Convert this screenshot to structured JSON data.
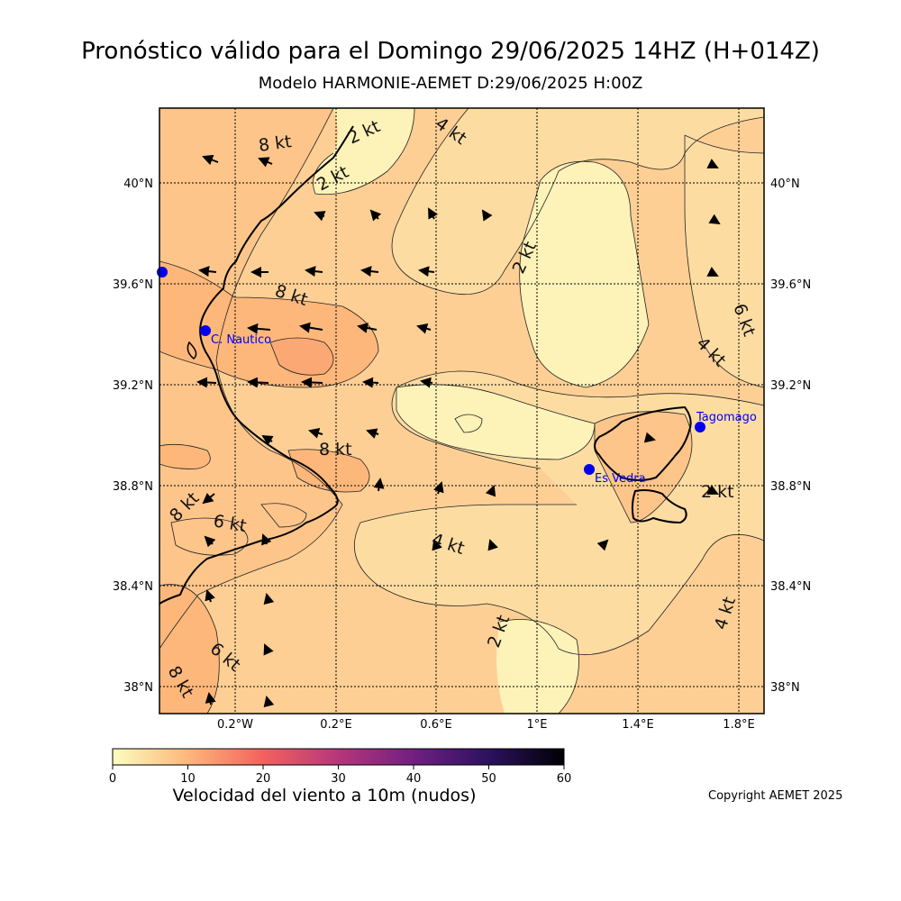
{
  "header": {
    "title": "Pronóstico válido para el Domingo 29/06/2025 14HZ (H+014Z)",
    "subtitle": "Modelo HARMONIE-AEMET D:29/06/2025 H:00Z"
  },
  "axes": {
    "lon_ticks": [
      "0.2°W",
      "0.2°E",
      "0.6°E",
      "1°E",
      "1.4°E",
      "1.8°E"
    ],
    "lat_ticks": [
      "40°N",
      "39.6°N",
      "39.2°N",
      "38.8°N",
      "38.4°N",
      "38°N"
    ],
    "lon_range": [
      -0.52,
      1.88
    ],
    "lat_range": [
      37.9,
      40.3
    ]
  },
  "contour_labels": [
    "8 kt",
    "2 kt",
    "4 kt",
    "2 kt",
    "2 kt",
    "8 kt",
    "6 kt",
    "4 kt",
    "8 kt",
    "8 kt",
    "6 kt",
    "4 kt",
    "2 kt",
    "2 kt",
    "4 kt",
    "6 kt",
    "8 kt"
  ],
  "stations": [
    {
      "name": "C. Nautico",
      "lon": -0.33,
      "lat": 39.42
    },
    {
      "name": "Tagomago",
      "lon": 1.63,
      "lat": 39.03
    },
    {
      "name": "Es Vedra",
      "lon": 1.2,
      "lat": 38.87
    }
  ],
  "colorbar": {
    "ticks": [
      "0",
      "10",
      "20",
      "30",
      "40",
      "50",
      "60"
    ],
    "label": "Velocidad del viento a 10m (nudos)",
    "colors": [
      "#fcfdbf",
      "#fdb77a",
      "#f3625d",
      "#b5367a",
      "#711f81",
      "#2c115f",
      "#000004"
    ]
  },
  "copyright": "Copyright AEMET 2025"
}
